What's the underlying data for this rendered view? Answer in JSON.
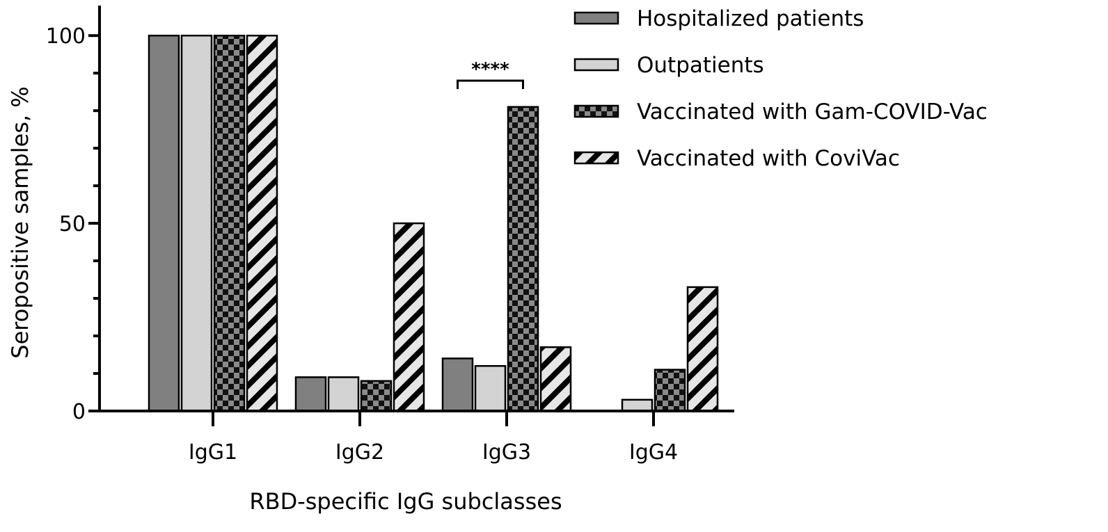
{
  "chart_data": {
    "type": "bar",
    "categories": [
      "IgG1",
      "IgG2",
      "IgG3",
      "IgG4"
    ],
    "series": [
      {
        "name": "Hospitalized patients",
        "values": [
          100,
          9,
          14,
          0
        ],
        "color": "#808080",
        "pattern": "solid"
      },
      {
        "name": "Outpatients",
        "values": [
          100,
          9,
          12,
          3
        ],
        "color": "#d3d3d3",
        "pattern": "solid"
      },
      {
        "name": "Vaccinated with Gam-COVID-Vac",
        "values": [
          100,
          8,
          81,
          11
        ],
        "color": "#8a8a8a",
        "pattern": "checker"
      },
      {
        "name": "Vaccinated with CoviVac",
        "values": [
          100,
          50,
          17,
          33
        ],
        "color": "#e6e6e6",
        "pattern": "diagonal"
      }
    ],
    "xlabel": "RBD-specific IgG subclasses",
    "ylabel": "Seropositive samples, %",
    "ylim": [
      0,
      108
    ],
    "yticks": [
      "0",
      "50",
      "100"
    ],
    "ytick_values": [
      0,
      50,
      100
    ],
    "grid": false,
    "legend_position": "top-right",
    "annotations": [
      {
        "text": "****",
        "category": "IgG3",
        "from_series": 0,
        "to_series": 2,
        "y": 88
      }
    ]
  }
}
